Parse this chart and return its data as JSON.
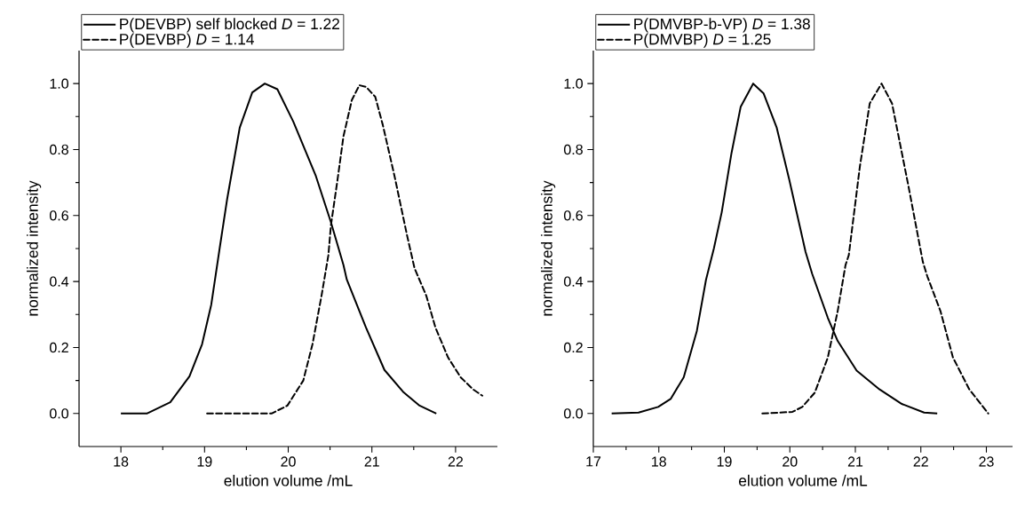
{
  "chart_data": [
    {
      "type": "line",
      "xlabel": "elution volume /mL",
      "ylabel": "normalized intensity",
      "xlim": [
        17.5,
        22.5
      ],
      "ylim": [
        -0.1,
        1.1
      ],
      "xticks": [
        18,
        19,
        20,
        21,
        22
      ],
      "yticks": [
        {
          "value": 0,
          "label": "0.0"
        },
        {
          "value": 0.2,
          "label": "0.2"
        },
        {
          "value": 0.4,
          "label": "0.4"
        },
        {
          "value": 0.6,
          "label": "0.6"
        },
        {
          "value": 0.8,
          "label": "0.8"
        },
        {
          "value": 1,
          "label": "1.0"
        }
      ],
      "legend": "top left",
      "series": [
        {
          "name": "P(DEVBP) self blocked *D* = 1.22",
          "color": "#000000",
          "line_style": "solid",
          "x": [
            18.0,
            18.31,
            18.59,
            18.82,
            18.97,
            19.08,
            19.18,
            19.27,
            19.42,
            19.57,
            19.72,
            19.87,
            20.06,
            20.33,
            20.51,
            20.66,
            20.7,
            20.93,
            21.15,
            21.38,
            21.57,
            21.77
          ],
          "values": [
            0,
            0,
            0.034,
            0.113,
            0.21,
            0.33,
            0.5,
            0.65,
            0.866,
            0.973,
            1.0,
            0.983,
            0.885,
            0.72,
            0.58,
            0.45,
            0.406,
            0.26,
            0.132,
            0.064,
            0.024,
            0
          ]
        },
        {
          "name": "P(DEVBP) *D* = 1.14",
          "color": "#000000",
          "line_style": "dashed",
          "x": [
            19.03,
            19.8,
            19.99,
            20.18,
            20.29,
            20.4,
            20.48,
            20.51,
            20.59,
            20.66,
            20.76,
            20.85,
            20.93,
            21.04,
            21.13,
            21.27,
            21.42,
            21.51,
            21.65,
            21.76,
            21.91,
            22.06,
            22.21,
            22.32
          ],
          "values": [
            0,
            0,
            0.024,
            0.1,
            0.21,
            0.36,
            0.48,
            0.57,
            0.71,
            0.84,
            0.95,
            0.995,
            0.99,
            0.96,
            0.875,
            0.72,
            0.54,
            0.44,
            0.357,
            0.26,
            0.17,
            0.11,
            0.073,
            0.054
          ]
        }
      ]
    },
    {
      "type": "line",
      "xlabel": "elution volume /mL",
      "ylabel": "normalized intensity",
      "xlim": [
        17,
        23.4
      ],
      "ylim": [
        -0.1,
        1.1
      ],
      "xticks": [
        17,
        18,
        19,
        20,
        21,
        22,
        23
      ],
      "yticks": [
        {
          "value": 0,
          "label": "0.0"
        },
        {
          "value": 0.2,
          "label": "0.2"
        },
        {
          "value": 0.4,
          "label": "0.4"
        },
        {
          "value": 0.6,
          "label": "0.6"
        },
        {
          "value": 0.8,
          "label": "0.8"
        },
        {
          "value": 1,
          "label": "1.0"
        }
      ],
      "legend": "top left",
      "series": [
        {
          "name": "P(DMVBP-b-VP) *D* = 1.38",
          "color": "#000000",
          "line_style": "solid",
          "x": [
            17.28,
            17.69,
            17.99,
            18.18,
            18.38,
            18.58,
            18.72,
            18.84,
            18.96,
            19.11,
            19.25,
            19.44,
            19.6,
            19.8,
            19.99,
            20.24,
            20.34,
            20.58,
            20.73,
            21.02,
            21.37,
            21.71,
            22.05,
            22.25
          ],
          "values": [
            0,
            0.003,
            0.02,
            0.044,
            0.11,
            0.25,
            0.405,
            0.5,
            0.61,
            0.79,
            0.93,
            1.0,
            0.97,
            0.866,
            0.71,
            0.49,
            0.424,
            0.29,
            0.22,
            0.13,
            0.073,
            0.029,
            0.003,
            0
          ]
        },
        {
          "name": "P(DMVBP) *D* = 1.25",
          "color": "#000000",
          "line_style": "dashed",
          "x": [
            19.58,
            20.04,
            20.19,
            20.38,
            20.58,
            20.73,
            20.85,
            20.9,
            21.07,
            21.22,
            21.4,
            21.56,
            21.81,
            22.03,
            22.1,
            22.3,
            22.49,
            22.74,
            23.03
          ],
          "values": [
            0,
            0.005,
            0.02,
            0.063,
            0.17,
            0.31,
            0.45,
            0.48,
            0.75,
            0.94,
            1.0,
            0.94,
            0.69,
            0.46,
            0.415,
            0.31,
            0.17,
            0.073,
            0
          ]
        }
      ]
    }
  ]
}
